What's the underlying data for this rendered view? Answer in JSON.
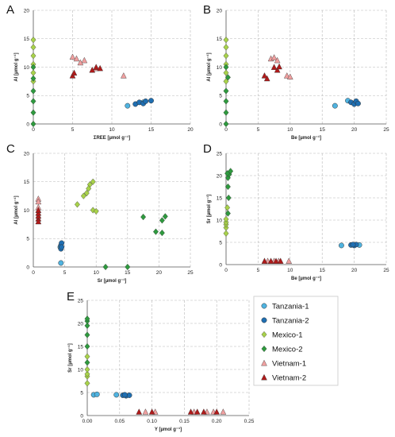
{
  "legend": [
    {
      "name": "Tanzania-1",
      "color": "#4fb3e0",
      "marker": "circle"
    },
    {
      "name": "Tanzania-2",
      "color": "#1f6fb2",
      "marker": "circle"
    },
    {
      "name": "Mexico-1",
      "color": "#a8d24a",
      "marker": "diamond"
    },
    {
      "name": "Mexico-2",
      "color": "#2e9a3e",
      "marker": "diamond"
    },
    {
      "name": "Vietnam-1",
      "color": "#f0a0a0",
      "marker": "triangle"
    },
    {
      "name": "Vietnam-2",
      "color": "#b01a1a",
      "marker": "triangle"
    }
  ],
  "chart_data": [
    {
      "panel": "A",
      "type": "scatter",
      "xlabel": "ΣREE [µmol g⁻¹]",
      "ylabel": "Al [µmol g⁻¹]",
      "xlim": [
        0,
        20
      ],
      "ylim": [
        0,
        20
      ],
      "xticks": [
        0,
        5,
        10,
        15,
        20
      ],
      "yticks": [
        0,
        5,
        10,
        15,
        20
      ],
      "series": [
        {
          "name": "Tanzania-1",
          "points": [
            [
              12,
              3.2
            ],
            [
              14,
              3.8
            ]
          ]
        },
        {
          "name": "Tanzania-2",
          "points": [
            [
              13,
              3.5
            ],
            [
              13.5,
              3.8
            ],
            [
              14,
              3.6
            ],
            [
              14.3,
              4.0
            ],
            [
              15,
              4.1
            ]
          ]
        },
        {
          "name": "Mexico-1",
          "points": [
            [
              0,
              7.5
            ],
            [
              0,
              9
            ],
            [
              0,
              10.5
            ],
            [
              0,
              12
            ],
            [
              0,
              13.5
            ],
            [
              0,
              14.8
            ]
          ]
        },
        {
          "name": "Mexico-2",
          "points": [
            [
              0,
              0
            ],
            [
              0,
              2
            ],
            [
              0,
              4
            ],
            [
              0,
              5.8
            ],
            [
              0,
              8
            ],
            [
              0,
              10
            ]
          ]
        },
        {
          "name": "Vietnam-1",
          "points": [
            [
              5,
              11.8
            ],
            [
              5.5,
              11.5
            ],
            [
              6.5,
              11.2
            ],
            [
              8,
              9.8
            ],
            [
              11.5,
              8.5
            ],
            [
              6,
              10.8
            ]
          ]
        },
        {
          "name": "Vietnam-2",
          "points": [
            [
              5,
              8.5
            ],
            [
              7.5,
              9.5
            ],
            [
              8,
              10
            ],
            [
              8.5,
              9.8
            ],
            [
              5.2,
              9
            ]
          ]
        }
      ]
    },
    {
      "panel": "B",
      "type": "scatter",
      "xlabel": "Be [µmol g⁻¹]",
      "ylabel": "Al [µmol g⁻¹]",
      "xlim": [
        0,
        25
      ],
      "ylim": [
        0,
        20
      ],
      "xticks": [
        0,
        5,
        10,
        15,
        20,
        25
      ],
      "yticks": [
        0,
        5,
        10,
        15,
        20
      ],
      "series": [
        {
          "name": "Tanzania-1",
          "points": [
            [
              17,
              3.2
            ],
            [
              19,
              4.1
            ]
          ]
        },
        {
          "name": "Tanzania-2",
          "points": [
            [
              19.5,
              3.8
            ],
            [
              20,
              3.5
            ],
            [
              20.3,
              4.0
            ],
            [
              20.6,
              3.6
            ]
          ]
        },
        {
          "name": "Mexico-1",
          "points": [
            [
              0,
              7.5
            ],
            [
              0,
              9
            ],
            [
              0,
              10.5
            ],
            [
              0,
              12
            ],
            [
              0,
              13.5
            ],
            [
              0,
              14.8
            ]
          ]
        },
        {
          "name": "Mexico-2",
          "points": [
            [
              0,
              0
            ],
            [
              0,
              2
            ],
            [
              0,
              4
            ],
            [
              0,
              5.8
            ],
            [
              0.3,
              8.2
            ],
            [
              0,
              10
            ]
          ]
        },
        {
          "name": "Vietnam-1",
          "points": [
            [
              7,
              11.5
            ],
            [
              7.5,
              11.7
            ],
            [
              8,
              11.2
            ],
            [
              9.5,
              8.5
            ],
            [
              10,
              8.3
            ]
          ]
        },
        {
          "name": "Vietnam-2",
          "points": [
            [
              6,
              8.5
            ],
            [
              7.5,
              10
            ],
            [
              8,
              9.5
            ],
            [
              8.3,
              10.1
            ],
            [
              6.4,
              8
            ]
          ]
        }
      ]
    },
    {
      "panel": "C",
      "type": "scatter",
      "xlabel": "Sr [µmol g⁻¹]",
      "ylabel": "Al [µmol g⁻¹]",
      "xlim": [
        0,
        25
      ],
      "ylim": [
        0,
        20
      ],
      "xticks": [
        0,
        5,
        10,
        15,
        20,
        25
      ],
      "yticks": [
        0,
        5,
        10,
        15,
        20
      ],
      "series": [
        {
          "name": "Tanzania-1",
          "points": [
            [
              4.4,
              0.7
            ],
            [
              4.3,
              3.5
            ]
          ]
        },
        {
          "name": "Tanzania-2",
          "points": [
            [
              4.4,
              3.2
            ],
            [
              4.4,
              3.8
            ],
            [
              4.5,
              4.2
            ],
            [
              4.5,
              3.5
            ]
          ]
        },
        {
          "name": "Mexico-1",
          "points": [
            [
              7,
              11
            ],
            [
              8,
              12.5
            ],
            [
              8.5,
              13
            ],
            [
              9,
              14.5
            ],
            [
              9.5,
              15
            ],
            [
              9.5,
              10
            ],
            [
              10,
              9.8
            ],
            [
              8.8,
              13.8
            ]
          ]
        },
        {
          "name": "Mexico-2",
          "points": [
            [
              11.5,
              0
            ],
            [
              15,
              0
            ],
            [
              17.5,
              8.8
            ],
            [
              19.5,
              6.2
            ],
            [
              20.5,
              8.2
            ],
            [
              21,
              8.9
            ],
            [
              20.5,
              6
            ]
          ]
        },
        {
          "name": "Vietnam-1",
          "points": [
            [
              0.8,
              12
            ],
            [
              0.8,
              11.5
            ],
            [
              0.8,
              10.5
            ]
          ]
        },
        {
          "name": "Vietnam-2",
          "points": [
            [
              0.8,
              8.5
            ],
            [
              0.8,
              9
            ],
            [
              0.8,
              9.5
            ],
            [
              0.8,
              10
            ],
            [
              0.8,
              8
            ]
          ]
        }
      ]
    },
    {
      "panel": "D",
      "type": "scatter",
      "xlabel": "Be [µmol g⁻¹]",
      "ylabel": "Sr [µmol g⁻¹]",
      "xlim": [
        0,
        25
      ],
      "ylim": [
        0,
        25
      ],
      "xticks": [
        0,
        5,
        10,
        15,
        20,
        25
      ],
      "yticks": [
        0,
        5,
        10,
        15,
        20,
        25
      ],
      "series": [
        {
          "name": "Tanzania-1",
          "points": [
            [
              18,
              4.3
            ],
            [
              20.8,
              4.4
            ]
          ]
        },
        {
          "name": "Tanzania-2",
          "points": [
            [
              19.5,
              4.4
            ],
            [
              20,
              4.3
            ],
            [
              20.3,
              4.5
            ],
            [
              19.8,
              4.5
            ]
          ]
        },
        {
          "name": "Mexico-1",
          "points": [
            [
              0,
              7
            ],
            [
              0,
              8.3
            ],
            [
              0,
              9
            ],
            [
              0,
              9.5
            ],
            [
              0,
              10.2
            ],
            [
              0.2,
              12.8
            ]
          ]
        },
        {
          "name": "Mexico-2",
          "points": [
            [
              0.3,
              11.5
            ],
            [
              0.4,
              15
            ],
            [
              0.3,
              17.5
            ],
            [
              0.3,
              19.5
            ],
            [
              0.5,
              20.3
            ],
            [
              0.7,
              21
            ],
            [
              0.2,
              20.5
            ]
          ]
        },
        {
          "name": "Vietnam-1",
          "points": [
            [
              6.5,
              0.8
            ],
            [
              7.5,
              0.8
            ],
            [
              8.2,
              0.8
            ],
            [
              9.8,
              0.8
            ]
          ]
        },
        {
          "name": "Vietnam-2",
          "points": [
            [
              6,
              0.8
            ],
            [
              7,
              0.8
            ],
            [
              7.8,
              0.8
            ],
            [
              8.5,
              0.8
            ]
          ]
        }
      ]
    },
    {
      "panel": "E",
      "type": "scatter",
      "xlabel": "Y [µmol g⁻¹]",
      "ylabel": "Sr [µmol g⁻¹]",
      "xlim": [
        0,
        0.25
      ],
      "ylim": [
        0,
        25
      ],
      "xticks": [
        "0.00",
        "0.05",
        "0.10",
        "0.15",
        "0.20",
        "0.25"
      ],
      "yticks": [
        0,
        5,
        10,
        15,
        20,
        25
      ],
      "series": [
        {
          "name": "Tanzania-1",
          "points": [
            [
              0.01,
              4.5
            ],
            [
              0.015,
              4.6
            ],
            [
              0.045,
              4.5
            ]
          ]
        },
        {
          "name": "Tanzania-2",
          "points": [
            [
              0.055,
              4.4
            ],
            [
              0.06,
              4.3
            ],
            [
              0.065,
              4.4
            ],
            [
              0.058,
              4.5
            ]
          ]
        },
        {
          "name": "Mexico-1",
          "points": [
            [
              0,
              7
            ],
            [
              0,
              8.5
            ],
            [
              0,
              9
            ],
            [
              0,
              10
            ],
            [
              0,
              12.8
            ]
          ]
        },
        {
          "name": "Mexico-2",
          "points": [
            [
              0,
              11.5
            ],
            [
              0,
              15
            ],
            [
              0,
              17.5
            ],
            [
              0,
              19.5
            ],
            [
              0,
              20.5
            ],
            [
              0,
              21
            ]
          ]
        },
        {
          "name": "Vietnam-1",
          "points": [
            [
              0.09,
              0.8
            ],
            [
              0.105,
              0.8
            ],
            [
              0.165,
              0.8
            ],
            [
              0.185,
              0.8
            ],
            [
              0.195,
              0.8
            ],
            [
              0.21,
              0.8
            ]
          ]
        },
        {
          "name": "Vietnam-2",
          "points": [
            [
              0.08,
              0.8
            ],
            [
              0.1,
              0.8
            ],
            [
              0.16,
              0.8
            ],
            [
              0.17,
              0.8
            ],
            [
              0.18,
              0.8
            ],
            [
              0.2,
              0.8
            ]
          ]
        }
      ]
    }
  ]
}
